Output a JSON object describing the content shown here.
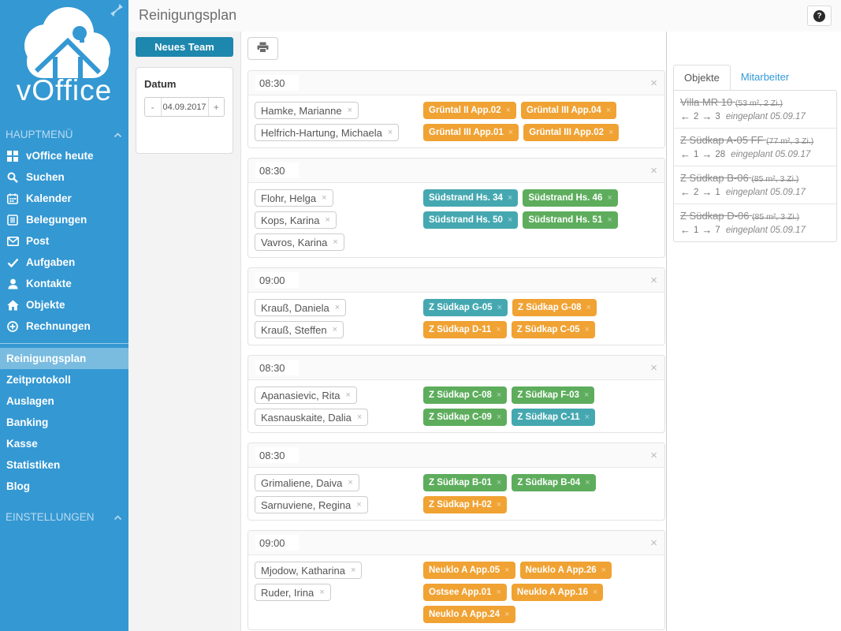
{
  "app": {
    "title": "Reinigungsplan",
    "help_label": "?",
    "x_glyph": "×"
  },
  "colors": {
    "sidebar": "#3498d3",
    "accent": "#1d87ae",
    "link": "#3399d6",
    "teal": "#45a8b1",
    "green": "#5dad5d",
    "orange": "#f0a233"
  },
  "sidebar": {
    "logo_text": "vOffice",
    "main_header": "HAUPTMENÜ",
    "main_items": [
      {
        "label": "vOffice heute",
        "icon": "grid"
      },
      {
        "label": "Suchen",
        "icon": "search"
      },
      {
        "label": "Kalender",
        "icon": "calendar"
      },
      {
        "label": "Belegungen",
        "icon": "document"
      },
      {
        "label": "Post",
        "icon": "mail"
      },
      {
        "label": "Aufgaben",
        "icon": "check"
      },
      {
        "label": "Kontakte",
        "icon": "user"
      },
      {
        "label": "Objekte",
        "icon": "home"
      },
      {
        "label": "Rechnungen",
        "icon": "plus-circle"
      }
    ],
    "tool_items": [
      {
        "label": "Reinigungsplan",
        "active": true
      },
      {
        "label": "Zeitprotokoll",
        "active": false
      },
      {
        "label": "Auslagen",
        "active": false
      },
      {
        "label": "Banking",
        "active": false
      },
      {
        "label": "Kasse",
        "active": false
      },
      {
        "label": "Statistiken",
        "active": false
      },
      {
        "label": "Blog",
        "active": false
      }
    ],
    "settings_header": "EINSTELLUNGEN"
  },
  "toolbar": {
    "new_team_label": "Neues Team",
    "date_label": "Datum",
    "date_value": "04.09.2017",
    "minus_label": "-",
    "plus_label": "+"
  },
  "teams": [
    {
      "time": "08:30",
      "people": [
        "Hamke, Marianne",
        "Helfrich-Hartung, Michaela"
      ],
      "objects": [
        {
          "label": "Grüntal II App.02",
          "color": "orange"
        },
        {
          "label": "Grüntal III App.04",
          "color": "orange"
        },
        {
          "label": "Grüntal III App.01",
          "color": "orange"
        },
        {
          "label": "Grüntal III App.02",
          "color": "orange"
        }
      ]
    },
    {
      "time": "08:30",
      "people": [
        "Flohr, Helga",
        "Kops, Karina",
        "Vavros, Karina"
      ],
      "objects": [
        {
          "label": "Südstrand Hs. 34",
          "color": "teal"
        },
        {
          "label": "Südstrand Hs. 46",
          "color": "green"
        },
        {
          "label": "Südstrand Hs. 50",
          "color": "teal"
        },
        {
          "label": "Südstrand Hs. 51",
          "color": "green"
        }
      ]
    },
    {
      "time": "09:00",
      "people": [
        "Krauß, Daniela",
        "Krauß, Steffen"
      ],
      "objects": [
        {
          "label": "Z Südkap G-05",
          "color": "teal"
        },
        {
          "label": "Z Südkap G-08",
          "color": "orange"
        },
        {
          "label": "Z Südkap D-11",
          "color": "orange"
        },
        {
          "label": "Z Südkap C-05",
          "color": "orange"
        }
      ]
    },
    {
      "time": "08:30",
      "people": [
        "Apanasievic, Rita",
        "Kasnauskaite, Dalia"
      ],
      "objects": [
        {
          "label": "Z Südkap C-08",
          "color": "green"
        },
        {
          "label": "Z Südkap F-03",
          "color": "green"
        },
        {
          "label": "Z Südkap C-09",
          "color": "green"
        },
        {
          "label": "Z Südkap C-11",
          "color": "teal"
        }
      ]
    },
    {
      "time": "08:30",
      "people": [
        "Grimaliene, Daiva",
        "Sarnuviene, Regina"
      ],
      "objects": [
        {
          "label": "Z Südkap B-01",
          "color": "green"
        },
        {
          "label": "Z Südkap B-04",
          "color": "green"
        },
        {
          "label": "Z Südkap H-02",
          "color": "orange"
        }
      ]
    },
    {
      "time": "09:00",
      "people": [
        "Mjodow, Katharina",
        "Ruder, Irina"
      ],
      "objects": [
        {
          "label": "Neuklo A App.05",
          "color": "orange"
        },
        {
          "label": "Neuklo A App.26",
          "color": "orange"
        },
        {
          "label": "Ostsee App.01",
          "color": "orange"
        },
        {
          "label": "Neuklo A App.16",
          "color": "orange"
        },
        {
          "label": "Neuklo A App.24",
          "color": "orange"
        }
      ]
    }
  ],
  "panel": {
    "tabs": [
      {
        "label": "Objekte",
        "active": true
      },
      {
        "label": "Mitarbeiter",
        "active": false
      }
    ],
    "objects": [
      {
        "name": "Villa MR 10",
        "details": "(53 m², 2 Zi.)",
        "back": "2",
        "forward": "3",
        "note": "eingeplant 05.09.17"
      },
      {
        "name": "Z Südkap A-05 FF",
        "details": "(77 m², 3 Zi.)",
        "back": "1",
        "forward": "28",
        "note": "eingeplant 05.09.17"
      },
      {
        "name": "Z Südkap B-06",
        "details": "(85 m², 3 Zi.)",
        "back": "2",
        "forward": "1",
        "note": "eingeplant 05.09.17"
      },
      {
        "name": "Z Südkap D-06",
        "details": "(85 m², 3 Zi.)",
        "back": "1",
        "forward": "7",
        "note": "eingeplant 05.09.17"
      }
    ]
  }
}
